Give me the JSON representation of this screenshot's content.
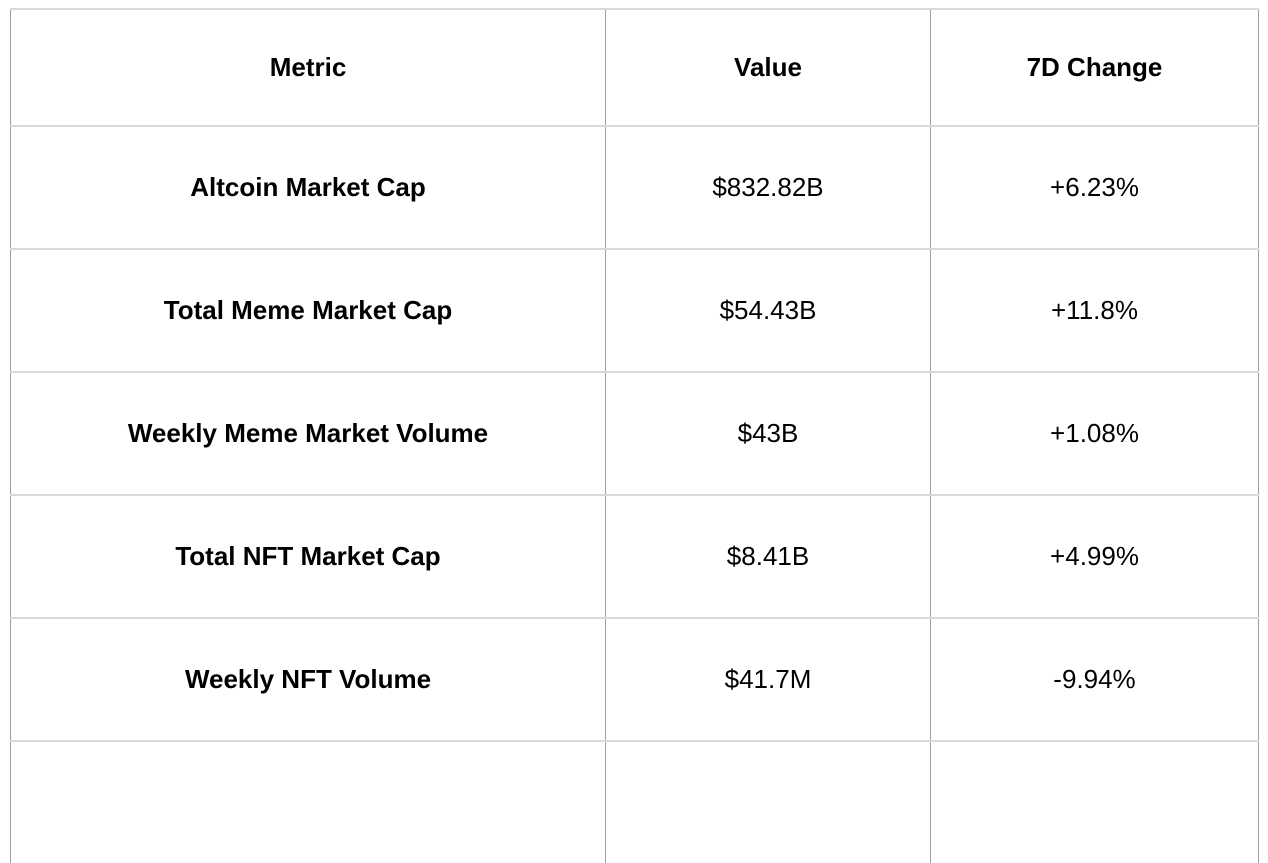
{
  "chart_data": {
    "type": "table",
    "columns": [
      "Metric",
      "Value",
      "7D Change"
    ],
    "rows": [
      [
        "Altcoin Market Cap",
        "$832.82B",
        "+6.23%"
      ],
      [
        "Total Meme Market Cap",
        "$54.43B",
        "+11.8%"
      ],
      [
        "Weekly Meme Market Volume",
        "$43B",
        "+1.08%"
      ],
      [
        "Total NFT Market Cap",
        "$8.41B",
        "+4.99%"
      ],
      [
        "Weekly NFT Volume",
        "$41.7M",
        "-9.94%"
      ]
    ],
    "layout_hints": {
      "header_bold": true,
      "metric_column_bold": true,
      "alignment": "center",
      "partial_sixth_row_cut_off": true
    }
  },
  "colors": {
    "row_border": "#d9d9d9",
    "column_border": "#9e9e9e",
    "text": "#000000",
    "background": "#ffffff"
  }
}
